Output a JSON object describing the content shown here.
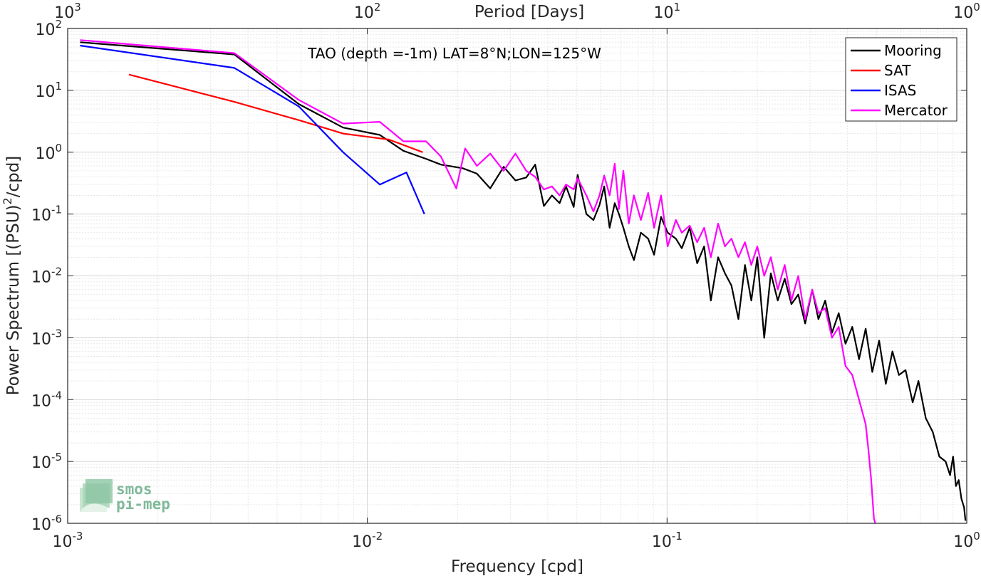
{
  "chart_data": {
    "type": "line",
    "title": "TAO (depth =-1m) LAT=8°N;LON=125°W",
    "xlabel": "Frequency [cpd]",
    "ylabel": "Power Spectrum [(PSU)",
    "ylabel_sup": "2",
    "ylabel_tail": "/cpd]",
    "top_xlabel": "Period [Days]",
    "x_scale": "log",
    "y_scale": "log",
    "xlim": [
      0.001,
      1
    ],
    "ylim": [
      1e-06,
      100
    ],
    "grid": true,
    "legend_position": "top-right",
    "x_ticks": [
      {
        "value": 0.001,
        "base": "10",
        "exp": "-3"
      },
      {
        "value": 0.01,
        "base": "10",
        "exp": "-2"
      },
      {
        "value": 0.1,
        "base": "10",
        "exp": "-1"
      },
      {
        "value": 1,
        "base": "10",
        "exp": "0"
      }
    ],
    "y_ticks": [
      {
        "value": 100,
        "base": "10",
        "exp": "2"
      },
      {
        "value": 10,
        "base": "10",
        "exp": "1"
      },
      {
        "value": 1,
        "base": "10",
        "exp": "0"
      },
      {
        "value": 0.1,
        "base": "10",
        "exp": "-1"
      },
      {
        "value": 0.01,
        "base": "10",
        "exp": "-2"
      },
      {
        "value": 0.001,
        "base": "10",
        "exp": "-3"
      },
      {
        "value": 0.0001,
        "base": "10",
        "exp": "-4"
      },
      {
        "value": 1e-05,
        "base": "10",
        "exp": "-5"
      },
      {
        "value": 1e-06,
        "base": "10",
        "exp": "-6"
      }
    ],
    "top_ticks": [
      {
        "value": 0.001,
        "base": "10",
        "exp": "3"
      },
      {
        "value": 0.01,
        "base": "10",
        "exp": "2"
      },
      {
        "value": 0.1,
        "base": "10",
        "exp": "1"
      },
      {
        "value": 1,
        "base": "10",
        "exp": "0"
      }
    ],
    "series": [
      {
        "name": "Mooring",
        "color": "#000000",
        "x": [
          0.0011,
          0.0036,
          0.0059,
          0.0083,
          0.011,
          0.0132,
          0.0157,
          0.0176,
          0.0208,
          0.0232,
          0.0257,
          0.0285,
          0.0312,
          0.0339,
          0.0363,
          0.0388,
          0.0413,
          0.0438,
          0.046,
          0.0488,
          0.0503,
          0.0538,
          0.0568,
          0.0595,
          0.0617,
          0.0643,
          0.0669,
          0.0691,
          0.0715,
          0.0745,
          0.0775,
          0.0818,
          0.0865,
          0.0905,
          0.0955,
          0.1005,
          0.107,
          0.112,
          0.119,
          0.126,
          0.133,
          0.14,
          0.148,
          0.156,
          0.164,
          0.173,
          0.182,
          0.191,
          0.2,
          0.211,
          0.222,
          0.234,
          0.247,
          0.26,
          0.274,
          0.289,
          0.305,
          0.32,
          0.337,
          0.355,
          0.374,
          0.394,
          0.415,
          0.437,
          0.46,
          0.484,
          0.51,
          0.537,
          0.565,
          0.594,
          0.625,
          0.66,
          0.69,
          0.73,
          0.77,
          0.81,
          0.85,
          0.88,
          0.9,
          0.92,
          0.94,
          0.96,
          0.98,
          0.99
        ],
        "y": [
          60,
          38,
          6,
          2.5,
          1.9,
          1.05,
          0.78,
          0.63,
          0.55,
          0.45,
          0.26,
          0.58,
          0.35,
          0.39,
          0.63,
          0.135,
          0.2,
          0.15,
          0.28,
          0.13,
          0.43,
          0.1,
          0.08,
          0.14,
          0.28,
          0.06,
          0.15,
          0.1,
          0.06,
          0.03,
          0.018,
          0.05,
          0.04,
          0.022,
          0.09,
          0.05,
          0.04,
          0.028,
          0.06,
          0.016,
          0.03,
          0.004,
          0.02,
          0.011,
          0.007,
          0.002,
          0.015,
          0.004,
          0.02,
          0.001,
          0.011,
          0.004,
          0.009,
          0.0035,
          0.005,
          0.0017,
          0.006,
          0.002,
          0.004,
          0.0012,
          0.0025,
          0.0008,
          0.0015,
          0.00045,
          0.0014,
          0.00028,
          0.0009,
          0.00018,
          0.0006,
          0.00025,
          0.0003,
          9e-05,
          0.0002,
          5e-05,
          3e-05,
          1.2e-05,
          1e-05,
          6e-06,
          1.2e-05,
          4e-06,
          5e-06,
          2.5e-06,
          1.8e-06,
          1.1e-06
        ]
      },
      {
        "name": "SAT",
        "color": "#ff0000",
        "x": [
          0.0016,
          0.0036,
          0.0059,
          0.0083,
          0.0118,
          0.0153
        ],
        "y": [
          18,
          6.5,
          3.3,
          2.0,
          1.6,
          1.0
        ]
      },
      {
        "name": "ISAS",
        "color": "#0000ff",
        "x": [
          0.0011,
          0.0036,
          0.0059,
          0.0083,
          0.011,
          0.0135,
          0.0155
        ],
        "y": [
          53,
          23,
          5.5,
          1.0,
          0.3,
          0.47,
          0.1
        ]
      },
      {
        "name": "Mercator",
        "color": "#ff00ff",
        "x": [
          0.0011,
          0.0036,
          0.0059,
          0.0083,
          0.011,
          0.0132,
          0.0157,
          0.0176,
          0.0198,
          0.0212,
          0.0232,
          0.0257,
          0.0285,
          0.0312,
          0.0339,
          0.0363,
          0.0388,
          0.0413,
          0.0438,
          0.046,
          0.0488,
          0.0503,
          0.0538,
          0.0568,
          0.0595,
          0.0617,
          0.0643,
          0.0669,
          0.0691,
          0.0715,
          0.0745,
          0.0775,
          0.0818,
          0.0865,
          0.0905,
          0.0955,
          0.1005,
          0.107,
          0.112,
          0.119,
          0.126,
          0.133,
          0.14,
          0.148,
          0.156,
          0.164,
          0.173,
          0.182,
          0.191,
          0.2,
          0.211,
          0.222,
          0.234,
          0.247,
          0.26,
          0.274,
          0.289,
          0.305,
          0.32,
          0.337,
          0.355,
          0.374,
          0.394,
          0.415,
          0.437,
          0.46,
          0.47,
          0.48,
          0.49,
          0.495
        ],
        "y": [
          65,
          40,
          7,
          2.9,
          3.1,
          1.5,
          1.5,
          0.85,
          0.26,
          1.15,
          0.6,
          0.95,
          0.5,
          0.95,
          0.5,
          0.4,
          0.25,
          0.28,
          0.2,
          0.3,
          0.25,
          0.38,
          0.2,
          0.11,
          0.2,
          0.42,
          0.2,
          0.65,
          0.12,
          0.5,
          0.07,
          0.2,
          0.08,
          0.22,
          0.06,
          0.2,
          0.03,
          0.08,
          0.05,
          0.065,
          0.035,
          0.06,
          0.02,
          0.07,
          0.03,
          0.04,
          0.02,
          0.035,
          0.015,
          0.03,
          0.01,
          0.02,
          0.006,
          0.015,
          0.004,
          0.01,
          0.002,
          0.006,
          0.0025,
          0.003,
          0.001,
          0.0015,
          0.00035,
          0.00025,
          0.0001,
          4e-05,
          1.5e-05,
          5e-06,
          1.2e-06,
          1e-06
        ]
      }
    ]
  },
  "logo": {
    "line1": "smos",
    "line2": "pi-mep"
  }
}
